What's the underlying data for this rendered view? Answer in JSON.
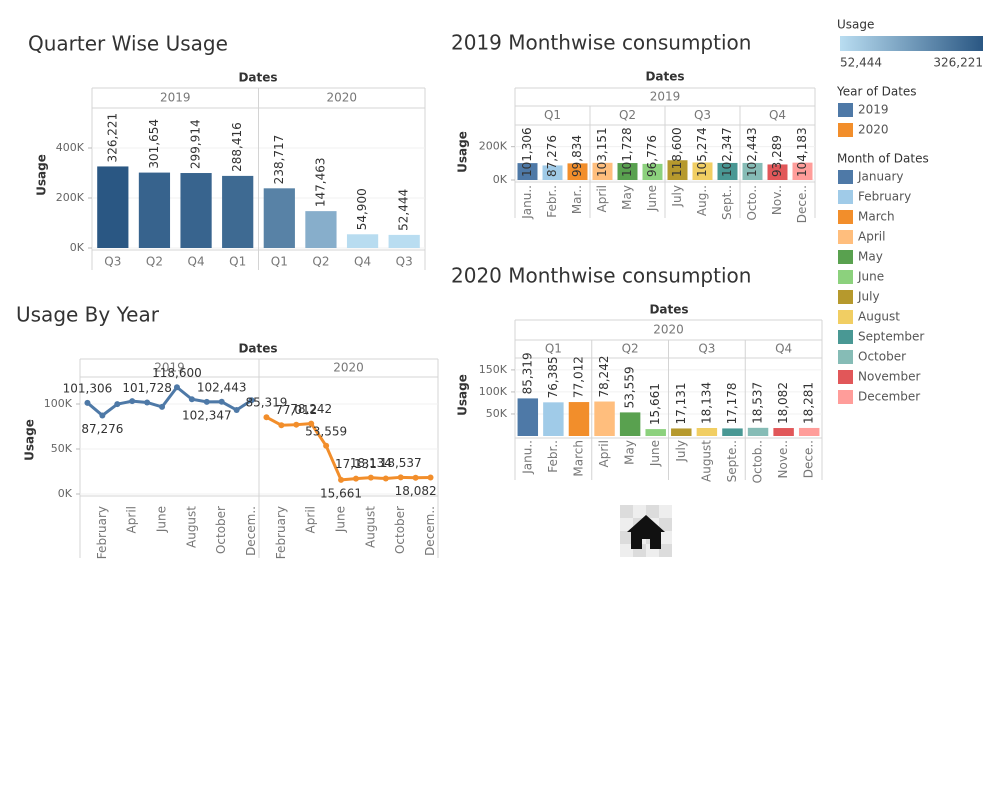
{
  "chart_data": [
    {
      "type": "bar",
      "title": "Quarter Wise Usage",
      "header": "Dates",
      "y_label": "Usage",
      "ylim": [
        0,
        560000
      ],
      "yticks": [
        {
          "value": 0,
          "label": "0K"
        },
        {
          "value": 200000,
          "label": "200K"
        },
        {
          "value": 400000,
          "label": "400K"
        }
      ],
      "grid": true,
      "panes": [
        {
          "header": "2019",
          "categories": [
            "Q3",
            "Q2",
            "Q4",
            "Q1"
          ],
          "values": [
            326221,
            301654,
            299914,
            288416
          ],
          "value_labels": [
            "326,221",
            "301,654",
            "299,914",
            "288,416"
          ]
        },
        {
          "header": "2020",
          "categories": [
            "Q1",
            "Q2",
            "Q4",
            "Q3"
          ],
          "values": [
            238717,
            147463,
            54900,
            52444
          ],
          "value_labels": [
            "238,717",
            "147,463",
            "54,900",
            "52,444"
          ]
        }
      ]
    },
    {
      "type": "line",
      "title": "Usage By Year",
      "header": "Dates",
      "y_label": "Usage",
      "ylim": [
        0,
        130000
      ],
      "yticks": [
        {
          "value": 0,
          "label": "0K"
        },
        {
          "value": 50000,
          "label": "50K"
        },
        {
          "value": 100000,
          "label": "100K"
        }
      ],
      "grid": true,
      "panes": [
        {
          "header": "2019",
          "color": "#4e79a7",
          "categories": [
            null,
            "February",
            null,
            "April",
            null,
            "June",
            null,
            "August",
            null,
            "October",
            null,
            "Decem.."
          ],
          "values": [
            101306,
            87276,
            99834,
            103151,
            101728,
            96776,
            118600,
            105274,
            102347,
            102443,
            93289,
            104183
          ],
          "value_labels": [
            "101,306",
            "87,276",
            null,
            null,
            "101,728",
            null,
            "118,600",
            null,
            "102,347",
            "102,443",
            null,
            null
          ]
        },
        {
          "header": "2020",
          "color": "#f28e2b",
          "categories": [
            null,
            "February",
            null,
            "April",
            null,
            "June",
            null,
            "August",
            null,
            "October",
            null,
            "Decem.."
          ],
          "values": [
            85319,
            76385,
            77012,
            78242,
            53559,
            15661,
            17131,
            18134,
            17178,
            18537,
            18082,
            18281
          ],
          "value_labels": [
            "85,319",
            null,
            "77,012",
            "78,242",
            "53,559",
            "15,661",
            "17,131",
            "18,134",
            null,
            "18,537",
            "18,082",
            null
          ]
        }
      ]
    },
    {
      "type": "bar",
      "title": "2019 Monthwise consumption",
      "header": "Dates",
      "pane_group": "2019",
      "y_label": "Usage",
      "ylim": [
        0,
        330000
      ],
      "yticks": [
        {
          "value": 0,
          "label": "0K"
        },
        {
          "value": 200000,
          "label": "200K"
        }
      ],
      "grid": true,
      "panes": [
        {
          "header": "Q1",
          "categories": [
            "Janu..",
            "Febr..",
            "Mar.."
          ],
          "values": [
            101306,
            87276,
            99834
          ],
          "value_labels": [
            "101,306",
            "87,276",
            "99,834"
          ],
          "colors": [
            "#4e79a7",
            "#a0cbe8",
            "#f28e2b"
          ]
        },
        {
          "header": "Q2",
          "categories": [
            "April",
            "May",
            "June"
          ],
          "values": [
            103151,
            101728,
            96776
          ],
          "value_labels": [
            "103,151",
            "101,728",
            "96,776"
          ],
          "colors": [
            "#ffbe7d",
            "#59a14f",
            "#8cd17d"
          ]
        },
        {
          "header": "Q3",
          "categories": [
            "July",
            "Aug..",
            "Sept.."
          ],
          "values": [
            118600,
            105274,
            102347
          ],
          "value_labels": [
            "118,600",
            "105,274",
            "102,347"
          ],
          "colors": [
            "#b6992d",
            "#f1ce63",
            "#499894"
          ]
        },
        {
          "header": "Q4",
          "categories": [
            "Octo..",
            "Nov..",
            "Dece.."
          ],
          "values": [
            102443,
            93289,
            104183
          ],
          "value_labels": [
            "102,443",
            "93,289",
            "104,183"
          ],
          "colors": [
            "#86bcb6",
            "#e15759",
            "#ff9d9a"
          ]
        }
      ]
    },
    {
      "type": "bar",
      "title": "2020 Monthwise consumption",
      "header": "Dates",
      "pane_group": "2020",
      "y_label": "Usage",
      "ylim": [
        0,
        177000
      ],
      "yticks": [
        {
          "value": 50000,
          "label": "50K"
        },
        {
          "value": 100000,
          "label": "100K"
        },
        {
          "value": 150000,
          "label": "150K"
        }
      ],
      "grid": true,
      "panes": [
        {
          "header": "Q1",
          "categories": [
            "Janu..",
            "Febr..",
            "March"
          ],
          "values": [
            85319,
            76385,
            77012
          ],
          "value_labels": [
            "85,319",
            "76,385",
            "77,012"
          ],
          "colors": [
            "#4e79a7",
            "#a0cbe8",
            "#f28e2b"
          ]
        },
        {
          "header": "Q2",
          "categories": [
            "April",
            "May",
            "June"
          ],
          "values": [
            78242,
            53559,
            15661
          ],
          "value_labels": [
            "78,242",
            "53,559",
            "15,661"
          ],
          "colors": [
            "#ffbe7d",
            "#59a14f",
            "#8cd17d"
          ]
        },
        {
          "header": "Q3",
          "categories": [
            "July",
            "August",
            "Septe.."
          ],
          "values": [
            17131,
            18134,
            17178
          ],
          "value_labels": [
            "17,131",
            "18,134",
            "17,178"
          ],
          "colors": [
            "#b6992d",
            "#f1ce63",
            "#499894"
          ]
        },
        {
          "header": "Q4",
          "categories": [
            "Octob..",
            "Nove..",
            "Dece.."
          ],
          "values": [
            18537,
            18082,
            18281
          ],
          "value_labels": [
            "18,537",
            "18,082",
            "18,281"
          ],
          "colors": [
            "#86bcb6",
            "#e15759",
            "#ff9d9a"
          ]
        }
      ]
    }
  ],
  "legends": [
    {
      "title": "Usage",
      "range": [
        {
          "value": 52444,
          "label": "52,444"
        },
        {
          "value": 326221,
          "label": "326,221"
        }
      ],
      "colors": [
        "#b9ddf1",
        "#2a5783"
      ]
    },
    {
      "title": "Year of Dates",
      "items": [
        {
          "name": "2019",
          "color": "#4e79a7"
        },
        {
          "name": "2020",
          "color": "#f28e2b"
        }
      ]
    },
    {
      "title": "Month of Dates",
      "items": [
        {
          "name": "January",
          "color": "#4e79a7"
        },
        {
          "name": "February",
          "color": "#a0cbe8"
        },
        {
          "name": "March",
          "color": "#f28e2b"
        },
        {
          "name": "April",
          "color": "#ffbe7d"
        },
        {
          "name": "May",
          "color": "#59a14f"
        },
        {
          "name": "June",
          "color": "#8cd17d"
        },
        {
          "name": "July",
          "color": "#b6992d"
        },
        {
          "name": "August",
          "color": "#f1ce63"
        },
        {
          "name": "September",
          "color": "#499894"
        },
        {
          "name": "October",
          "color": "#86bcb6"
        },
        {
          "name": "November",
          "color": "#e15759"
        },
        {
          "name": "December",
          "color": "#ff9d9a"
        }
      ]
    }
  ]
}
